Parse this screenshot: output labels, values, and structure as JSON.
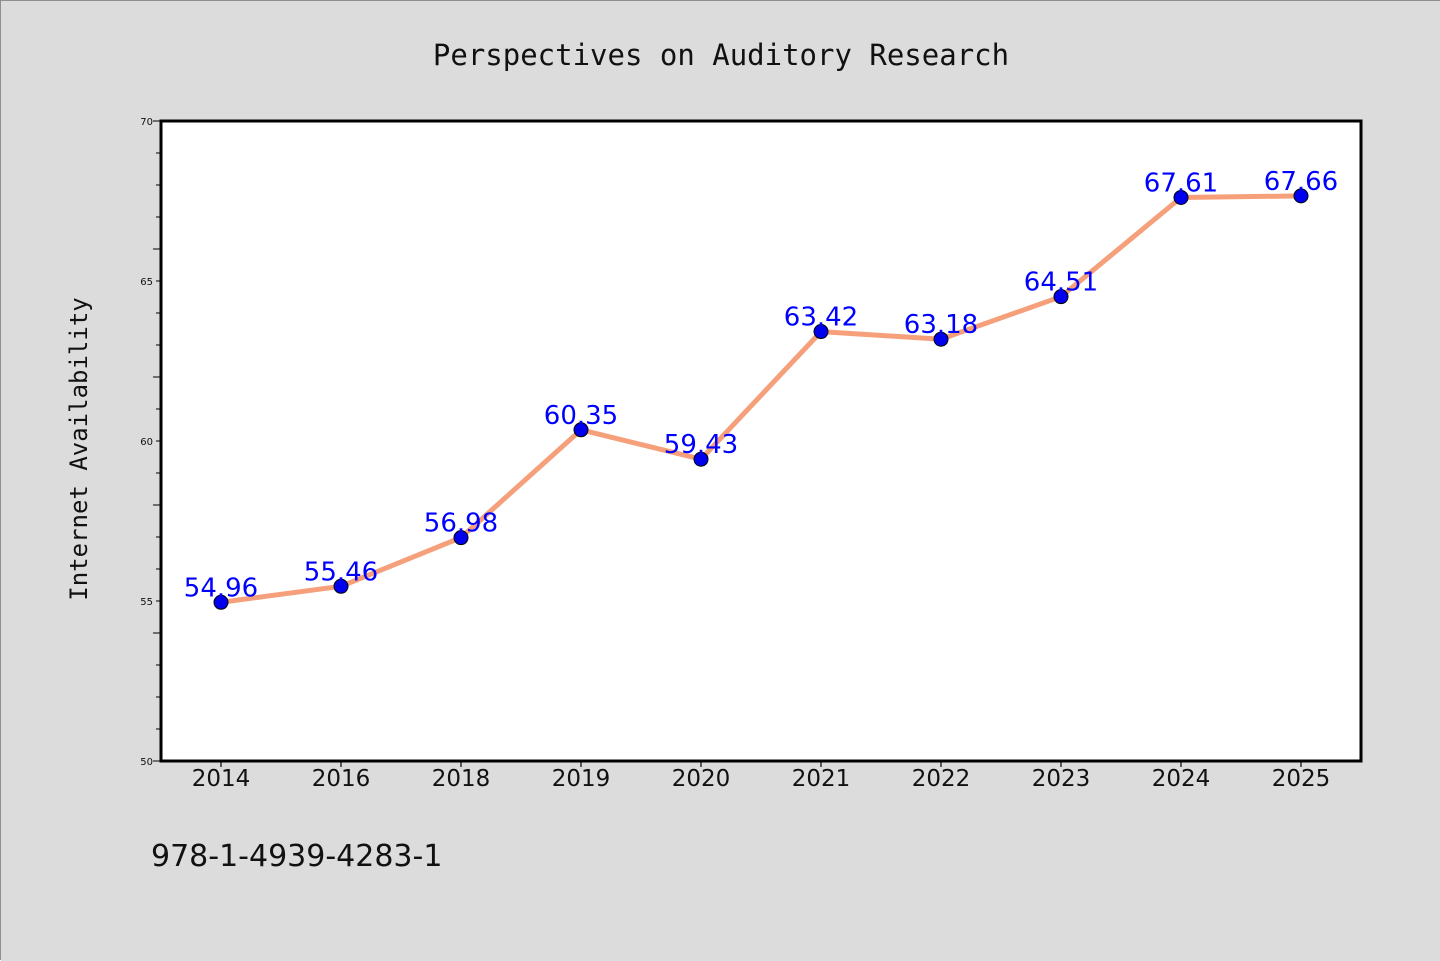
{
  "chart_data": {
    "type": "line",
    "title": "Perspectives on Auditory Research",
    "xlabel": "",
    "ylabel": "Internet Availability",
    "categories": [
      "2014",
      "2016",
      "2018",
      "2019",
      "2020",
      "2021",
      "2022",
      "2023",
      "2024",
      "2025"
    ],
    "series": [
      {
        "values": [
          54.96,
          55.46,
          56.98,
          60.35,
          59.43,
          63.42,
          63.18,
          64.51,
          67.61,
          67.66
        ],
        "data_labels": [
          "54.96",
          "55.46",
          "56.98",
          "60.35",
          "59.43",
          "63.42",
          "63.18",
          "64.51",
          "67.61",
          "67.66"
        ]
      }
    ],
    "ylim": [
      50,
      70
    ],
    "yticks": [
      "50",
      "55",
      "60",
      "65",
      "70"
    ],
    "grid": false,
    "legend": "none"
  },
  "footer_text": "978-1-4939-4283-1",
  "colors": {
    "background": "#dcdcdc",
    "plot_background": "#ffffff",
    "line": "#f5a07a",
    "marker": "#0000ee",
    "data_label": "#0000ff",
    "text": "#111111",
    "axis": "#000000"
  }
}
